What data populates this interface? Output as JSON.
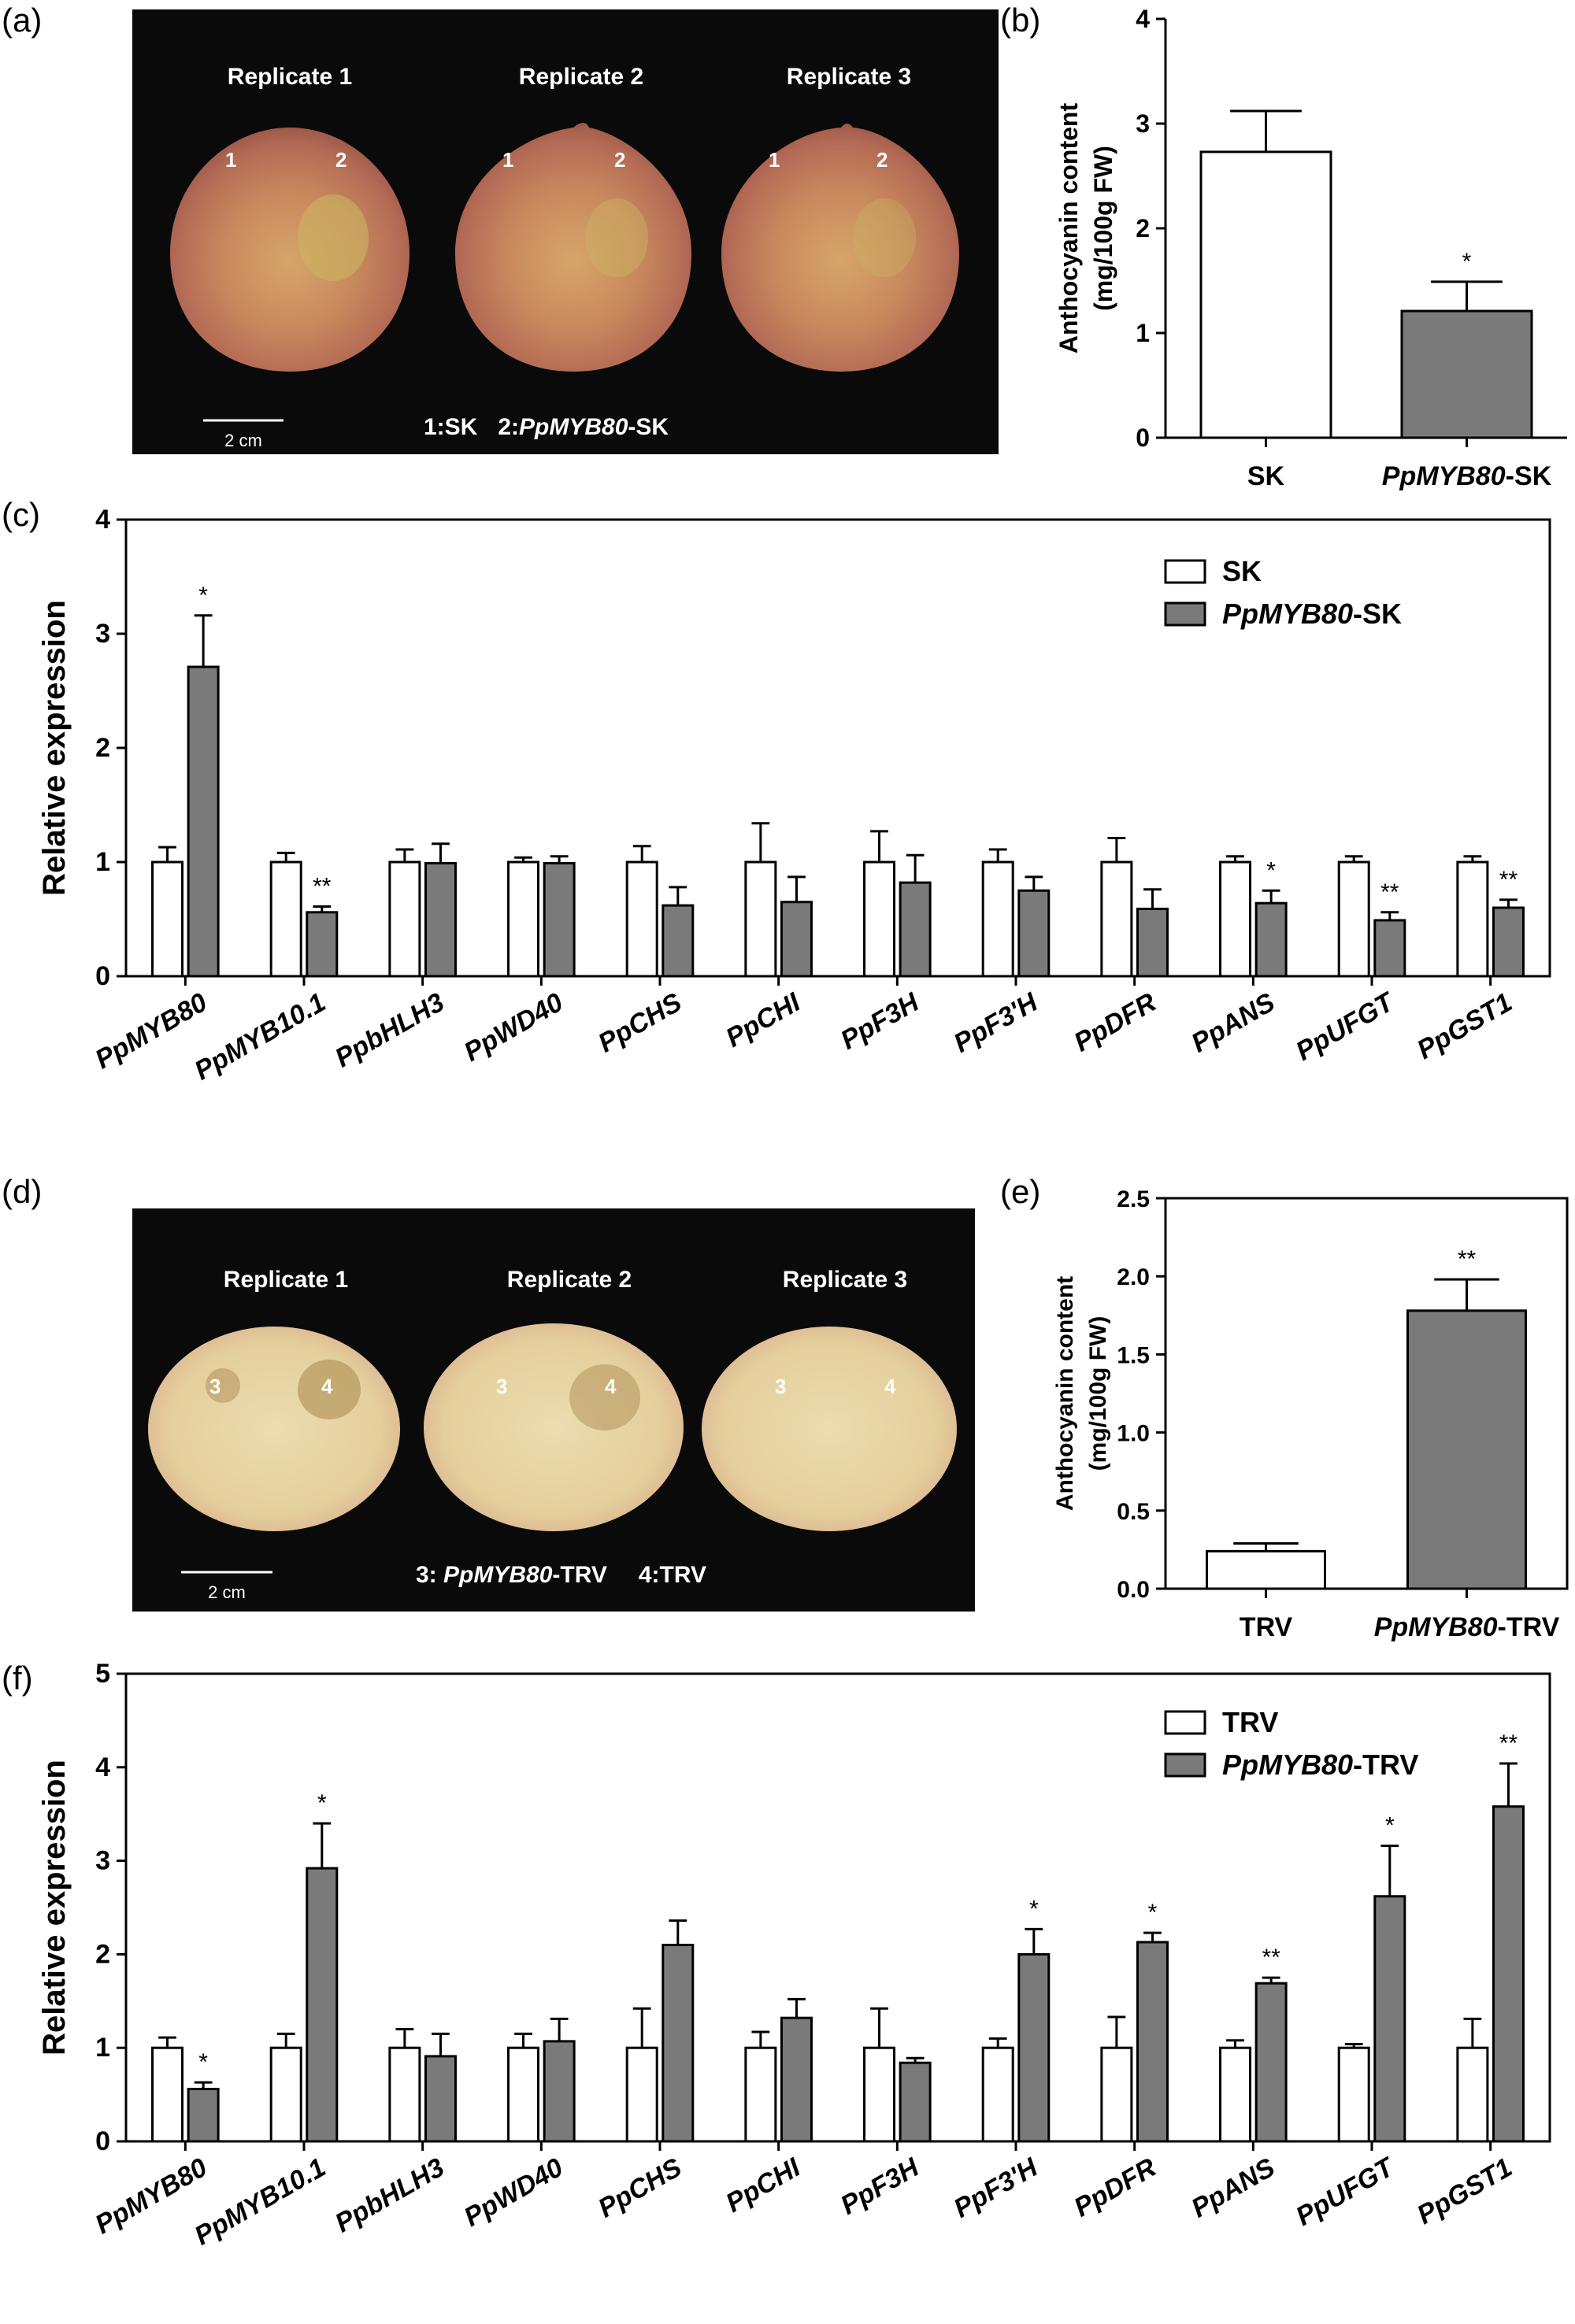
{
  "panels": {
    "a": "(a)",
    "b": "(b)",
    "c": "(c)",
    "d": "(d)",
    "e": "(e)",
    "f": "(f)"
  },
  "photo_a": {
    "replicates": [
      "Replicate 1",
      "Replicate 2",
      "Replicate 3"
    ],
    "markers": [
      "1",
      "2"
    ],
    "scale_bar": "2 cm",
    "legend_prefix1": "1:SK",
    "legend_prefix2": "2:",
    "legend_gene": "PpMYB80",
    "legend_suffix": "-SK"
  },
  "photo_d": {
    "replicates": [
      "Replicate 1",
      "Replicate 2",
      "Replicate 3"
    ],
    "markers": [
      "3",
      "4"
    ],
    "scale_bar": "2 cm",
    "legend_prefix": "3: ",
    "legend_gene": "PpMYB80",
    "legend_suffix": "-TRV",
    "legend_tail": "4:TRV"
  },
  "colors": {
    "control": "#ffffff",
    "treatment": "#7a7a7a",
    "photo_bg": "#0a0a0a"
  },
  "chart_data": [
    {
      "id": "b",
      "type": "bar",
      "ylabel": [
        "Anthocyanin content",
        "(mg/100g FW)"
      ],
      "ylim": [
        0,
        4
      ],
      "yticks": [
        0,
        1,
        2,
        3,
        4
      ],
      "ytick_labels": [
        "0",
        "1",
        "2",
        "3",
        "4"
      ],
      "categories": [
        {
          "plain": "SK",
          "gene": "",
          "suffix": ""
        },
        {
          "plain": "",
          "gene": "PpMYB80",
          "suffix": "-SK"
        }
      ],
      "values": [
        2.73,
        1.21
      ],
      "errors": [
        0.39,
        0.28
      ],
      "significance": [
        "",
        "*"
      ]
    },
    {
      "id": "c",
      "type": "bar",
      "ylabel": [
        "Relative expression"
      ],
      "ylim": [
        0,
        4
      ],
      "yticks": [
        0,
        1,
        2,
        3,
        4
      ],
      "ytick_labels": [
        "0",
        "1",
        "2",
        "3",
        "4"
      ],
      "categories": [
        "PpMYB80",
        "PpMYB10.1",
        "PpbHLH3",
        "PpWD40",
        "PpCHS",
        "PpCHI",
        "PpF3H",
        "PpF3'H",
        "PpDFR",
        "PpANS",
        "PpUFGT",
        "PpGST1"
      ],
      "legend": [
        {
          "plain": "SK",
          "gene": "",
          "suffix": ""
        },
        {
          "plain": "",
          "gene": "PpMYB80",
          "suffix": "-SK"
        }
      ],
      "series": [
        {
          "values": [
            1,
            1,
            1,
            1,
            1,
            1,
            1,
            1,
            1,
            1,
            1,
            1
          ],
          "errors": [
            0.13,
            0.08,
            0.11,
            0.04,
            0.14,
            0.34,
            0.27,
            0.11,
            0.21,
            0.05,
            0.05,
            0.05
          ],
          "significance": [
            "",
            "",
            "",
            "",
            "",
            "",
            "",
            "",
            "",
            "",
            "",
            ""
          ]
        },
        {
          "values": [
            2.71,
            0.56,
            0.99,
            0.99,
            0.62,
            0.65,
            0.82,
            0.75,
            0.59,
            0.64,
            0.49,
            0.6
          ],
          "errors": [
            0.45,
            0.05,
            0.17,
            0.06,
            0.16,
            0.22,
            0.24,
            0.12,
            0.17,
            0.11,
            0.07,
            0.07
          ],
          "significance": [
            "*",
            "**",
            "",
            "",
            "",
            "",
            "",
            "",
            "",
            "*",
            "**",
            "**"
          ]
        }
      ]
    },
    {
      "id": "e",
      "type": "bar",
      "ylabel": [
        "Anthocyanin content",
        "(mg/100g FW)"
      ],
      "ylim": [
        0,
        2.5
      ],
      "yticks": [
        0,
        0.5,
        1.0,
        1.5,
        2.0,
        2.5
      ],
      "ytick_labels": [
        "0.0",
        "0.5",
        "1.0",
        "1.5",
        "2.0",
        "2.5"
      ],
      "categories": [
        {
          "plain": "TRV",
          "gene": "",
          "suffix": ""
        },
        {
          "plain": "",
          "gene": "PpMYB80",
          "suffix": "-TRV"
        }
      ],
      "values": [
        0.24,
        1.78
      ],
      "errors": [
        0.05,
        0.2
      ],
      "significance": [
        "",
        "**"
      ]
    },
    {
      "id": "f",
      "type": "bar",
      "ylabel": [
        "Relative expression"
      ],
      "ylim": [
        0,
        5
      ],
      "yticks": [
        0,
        1,
        2,
        3,
        4,
        5
      ],
      "ytick_labels": [
        "0",
        "1",
        "2",
        "3",
        "4",
        "5"
      ],
      "categories": [
        "PpMYB80",
        "PpMYB10.1",
        "PpbHLH3",
        "PpWD40",
        "PpCHS",
        "PpCHI",
        "PpF3H",
        "PpF3'H",
        "PpDFR",
        "PpANS",
        "PpUFGT",
        "PpGST1"
      ],
      "legend": [
        {
          "plain": "TRV",
          "gene": "",
          "suffix": ""
        },
        {
          "plain": "",
          "gene": "PpMYB80",
          "suffix": "-TRV"
        }
      ],
      "series": [
        {
          "values": [
            1,
            1,
            1,
            1,
            1,
            1,
            1,
            1,
            1,
            1,
            1,
            1
          ],
          "errors": [
            0.11,
            0.15,
            0.2,
            0.15,
            0.42,
            0.17,
            0.42,
            0.1,
            0.33,
            0.08,
            0.04,
            0.31
          ],
          "significance": [
            "",
            "",
            "",
            "",
            "",
            "",
            "",
            "",
            "",
            "",
            "",
            ""
          ]
        },
        {
          "values": [
            0.56,
            2.92,
            0.91,
            1.07,
            2.1,
            1.32,
            0.84,
            2.0,
            2.13,
            1.69,
            2.62,
            3.58
          ],
          "errors": [
            0.07,
            0.48,
            0.24,
            0.24,
            0.26,
            0.2,
            0.05,
            0.27,
            0.1,
            0.06,
            0.54,
            0.46
          ],
          "significance": [
            "*",
            "*",
            "",
            "",
            "",
            "",
            "",
            "*",
            "*",
            "**",
            "*",
            "**"
          ]
        }
      ]
    }
  ]
}
